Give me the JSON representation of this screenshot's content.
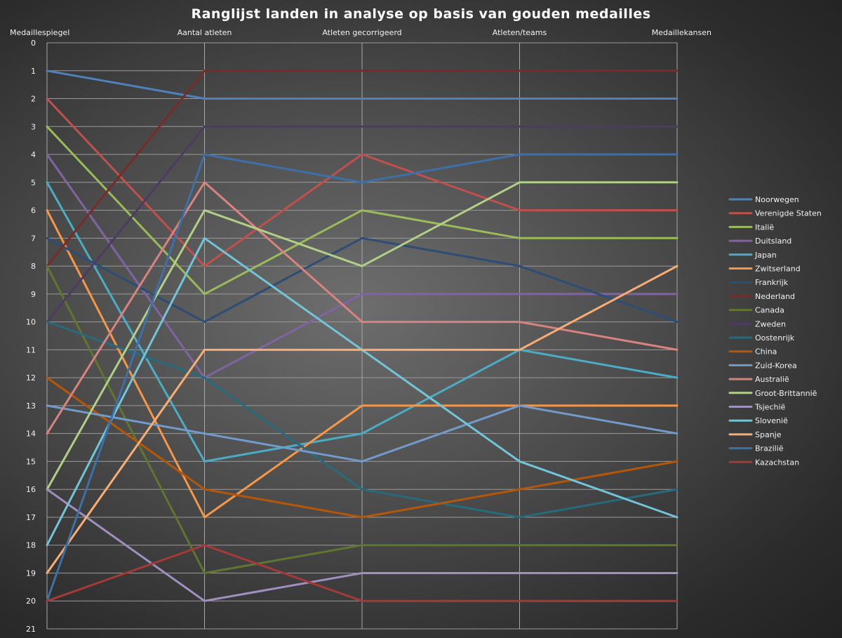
{
  "chart_data": {
    "type": "line",
    "title": "Ranglijst landen in analyse op basis van gouden medailles",
    "categories": [
      "Medaillespiegel",
      "Aantal atleten",
      "Atleten gecorrigeerd",
      "Atleten/teams",
      "Medaillekansen"
    ],
    "yticks": [
      "0",
      "1",
      "2",
      "3",
      "4",
      "5",
      "6",
      "7",
      "8",
      "9",
      "10",
      "11",
      "12",
      "13",
      "14",
      "15",
      "16",
      "17",
      "18",
      "19",
      "20",
      "21"
    ],
    "ylim": [
      0,
      21
    ],
    "y_reversed": true,
    "grid": true,
    "legend": "right",
    "series": [
      {
        "name": "Noorwegen",
        "color": "#4f81bd",
        "values": [
          1,
          2,
          2,
          2,
          2
        ]
      },
      {
        "name": "Verenigde Staten",
        "color": "#c0504d",
        "values": [
          2,
          8,
          4,
          6,
          6
        ]
      },
      {
        "name": "Italië",
        "color": "#9bbb59",
        "values": [
          3,
          9,
          6,
          7,
          7
        ]
      },
      {
        "name": "Duitsland",
        "color": "#8064a2",
        "values": [
          4,
          12,
          9,
          9,
          9
        ]
      },
      {
        "name": "Japan",
        "color": "#4bacc6",
        "values": [
          5,
          15,
          14,
          11,
          12
        ]
      },
      {
        "name": "Zwitserland",
        "color": "#f79646",
        "values": [
          6,
          17,
          13,
          13,
          13
        ]
      },
      {
        "name": "Frankrijk",
        "color": "#2c4d75",
        "values": [
          7,
          10,
          7,
          8,
          10
        ]
      },
      {
        "name": "Nederland",
        "color": "#772c2a",
        "values": [
          8,
          1,
          1,
          1,
          1
        ]
      },
      {
        "name": "Canada",
        "color": "#5f7530",
        "values": [
          8,
          19,
          18,
          18,
          18
        ]
      },
      {
        "name": "Zweden",
        "color": "#4d3b62",
        "values": [
          10,
          3,
          3,
          3,
          3
        ]
      },
      {
        "name": "Oostenrijk",
        "color": "#276a7c",
        "values": [
          10,
          12,
          16,
          17,
          16
        ]
      },
      {
        "name": "China",
        "color": "#b65708",
        "values": [
          12,
          16,
          17,
          16,
          15
        ]
      },
      {
        "name": "Zuid-Korea",
        "color": "#729aca",
        "values": [
          13,
          14,
          15,
          13,
          14
        ]
      },
      {
        "name": "Australië",
        "color": "#d9837f",
        "values": [
          14,
          5,
          10,
          10,
          11
        ]
      },
      {
        "name": "Groot-Brittannië",
        "color": "#b3ce86",
        "values": [
          16,
          6,
          8,
          5,
          5
        ]
      },
      {
        "name": "Tsjechië",
        "color": "#a18fc0",
        "values": [
          16,
          20,
          19,
          19,
          19
        ]
      },
      {
        "name": "Slovenië",
        "color": "#72c4d8",
        "values": [
          18,
          7,
          11,
          15,
          17
        ]
      },
      {
        "name": "Spanje",
        "color": "#f9ad74",
        "values": [
          19,
          11,
          11,
          11,
          8
        ]
      },
      {
        "name": "Brazilië",
        "color": "#3d6fa8",
        "values": [
          20,
          4,
          5,
          4,
          4
        ]
      },
      {
        "name": "Kazachstan",
        "color": "#a43a38",
        "values": [
          20,
          18,
          20,
          20,
          20
        ]
      }
    ]
  }
}
